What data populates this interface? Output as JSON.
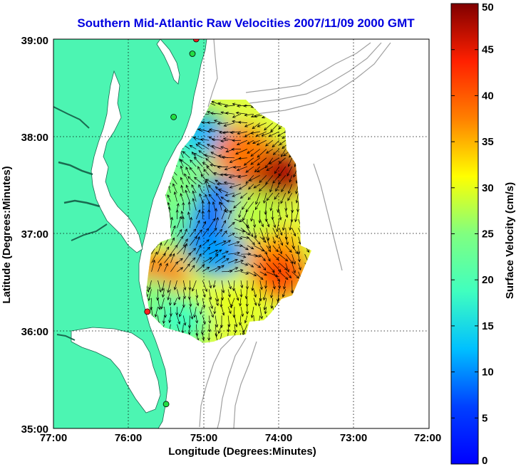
{
  "title": "Southern Mid-Atlantic Raw Velocities 2007/11/09 2000 GMT",
  "x_axis": {
    "label": "Longitude (Degrees:Minutes)",
    "ticks": [
      "77:00",
      "76:00",
      "75:00",
      "74:00",
      "73:00",
      "72:00"
    ]
  },
  "y_axis": {
    "label": "Latitude (Degrees:Minutes)",
    "ticks": [
      "39:00",
      "38:00",
      "37:00",
      "36:00",
      "35:00"
    ]
  },
  "colorbar": {
    "label": "Surface Velocity (cm/s)",
    "ticks": [
      "50",
      "45",
      "40",
      "35",
      "30",
      "25",
      "20",
      "15",
      "10",
      "5",
      "0"
    ],
    "range": [
      0,
      50
    ],
    "colormap": "jet"
  },
  "colors": {
    "title": "#0000e0",
    "land": "#4cf5b2",
    "station": "#22dd44",
    "station_alt": "#ff2020",
    "bathymetry": "#a0a0a0"
  },
  "chart_data": {
    "type": "heatmap",
    "lon_range": [
      -77,
      -72
    ],
    "lat_range": [
      35,
      39
    ],
    "grid": true,
    "value_range_cm_s": [
      0,
      50
    ],
    "velocity_regions": [
      {
        "lon": -75.0,
        "lat": 37.0,
        "speed": 10
      },
      {
        "lon": -74.9,
        "lat": 37.35,
        "speed": 12
      },
      {
        "lon": -74.8,
        "lat": 36.8,
        "speed": 14
      },
      {
        "lon": -75.0,
        "lat": 38.0,
        "speed": 15
      },
      {
        "lon": -74.3,
        "lat": 37.7,
        "speed": 45
      },
      {
        "lon": -74.05,
        "lat": 37.6,
        "speed": 48
      },
      {
        "lon": -74.5,
        "lat": 37.85,
        "speed": 38
      },
      {
        "lon": -74.1,
        "lat": 36.9,
        "speed": 35
      },
      {
        "lon": -74.0,
        "lat": 36.6,
        "speed": 40
      },
      {
        "lon": -75.6,
        "lat": 36.55,
        "speed": 38
      },
      {
        "lon": -75.7,
        "lat": 36.3,
        "speed": 25
      },
      {
        "lon": -75.3,
        "lat": 36.1,
        "speed": 22
      },
      {
        "lon": -74.6,
        "lat": 36.3,
        "speed": 30
      },
      {
        "lon": -75.5,
        "lat": 37.15,
        "speed": 24
      },
      {
        "lon": -75.4,
        "lat": 37.75,
        "speed": 22
      },
      {
        "lon": -75.35,
        "lat": 37.5,
        "speed": 25
      },
      {
        "lon": -74.3,
        "lat": 37.2,
        "speed": 28
      }
    ],
    "stations": [
      {
        "lon": -75.1,
        "lat": 39.0,
        "type": "red"
      },
      {
        "lon": -75.15,
        "lat": 38.85,
        "type": "green"
      },
      {
        "lon": -75.4,
        "lat": 38.2,
        "type": "green"
      },
      {
        "lon": -75.75,
        "lat": 36.2,
        "type": "red"
      },
      {
        "lon": -75.5,
        "lat": 35.25,
        "type": "green"
      }
    ]
  }
}
